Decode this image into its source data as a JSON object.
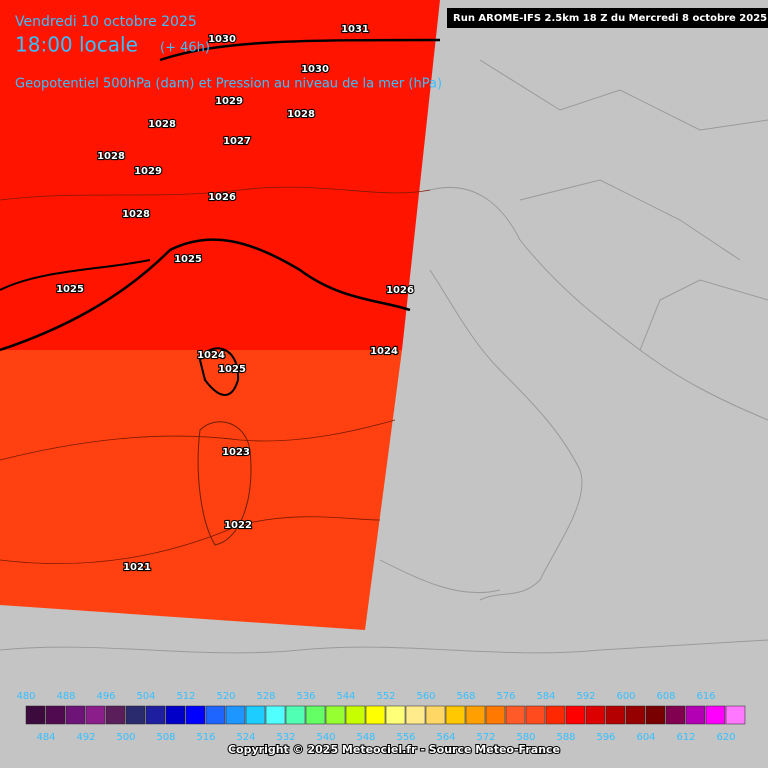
{
  "header": {
    "date": "Vendredi 10 octobre 2025",
    "time": "18:00 locale",
    "lead": "(+ 46h)",
    "subtitle": "Geopotentiel 500hPa (dam) et Pression au niveau de la mer (hPa)",
    "run": "Run AROME-IFS 2.5km 18 Z du Mercredi 8 octobre 2025"
  },
  "isobar_labels": [
    1031,
    1030,
    1030,
    1029,
    1028,
    1028,
    1028,
    1027,
    1029,
    1028,
    1026,
    1025,
    1025,
    1026,
    1024,
    1024,
    1025,
    1023,
    1022,
    1021
  ],
  "colorbar": {
    "top_ticks": [
      480,
      488,
      496,
      504,
      512,
      520,
      528,
      536,
      544,
      552,
      560,
      568,
      576,
      584,
      592,
      600,
      608,
      616
    ],
    "bottom_ticks": [
      484,
      492,
      500,
      508,
      516,
      524,
      532,
      540,
      548,
      556,
      564,
      572,
      580,
      588,
      596,
      604,
      612,
      620
    ],
    "colors": [
      "#3c0a3c",
      "#500a50",
      "#6e1478",
      "#8c1e8c",
      "#5a1e5a",
      "#2a2a6e",
      "#1e1ea0",
      "#0000c8",
      "#0000ff",
      "#1e64ff",
      "#1e96ff",
      "#1ecdff",
      "#50ffff",
      "#50ffb4",
      "#64ff64",
      "#96ff32",
      "#c8ff00",
      "#ffff00",
      "#ffff78",
      "#ffeb8c",
      "#ffd764",
      "#ffc800",
      "#ffa000",
      "#ff7800",
      "#ff5a28",
      "#ff4b1e",
      "#ff2800",
      "#ff0000",
      "#dc0000",
      "#b40000",
      "#960000",
      "#780000",
      "#820050",
      "#b400b4",
      "#ff00ff",
      "#ff78ff"
    ]
  },
  "footer": {
    "copyright": "Copyright © 2025 Meteociel.fr - Source Meteo-France"
  }
}
